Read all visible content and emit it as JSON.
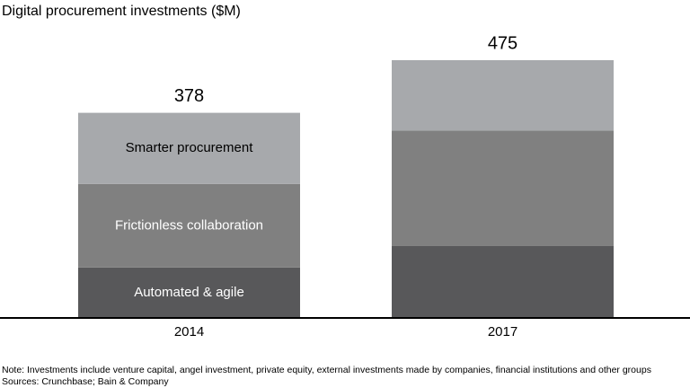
{
  "chart_data": {
    "type": "stacked_bar",
    "title": "Digital procurement investments ($M)",
    "categories": [
      "2014",
      "2017"
    ],
    "series": [
      {
        "name": "Automated & agile",
        "color": "#58585a",
        "values": [
          93,
          133
        ]
      },
      {
        "name": "Frictionless collaboration",
        "color": "#808080",
        "values": [
          154,
          212
        ]
      },
      {
        "name": "Smarter procurement",
        "color": "#a7a9ac",
        "values": [
          131,
          130
        ]
      }
    ],
    "totals": [
      378,
      475
    ],
    "note": "Note: Investments include venture capital, angel investment, private equity, external investments made by companies, financial institutions and other groups",
    "sources": "Sources: Crunchbase; Bain & Company"
  }
}
